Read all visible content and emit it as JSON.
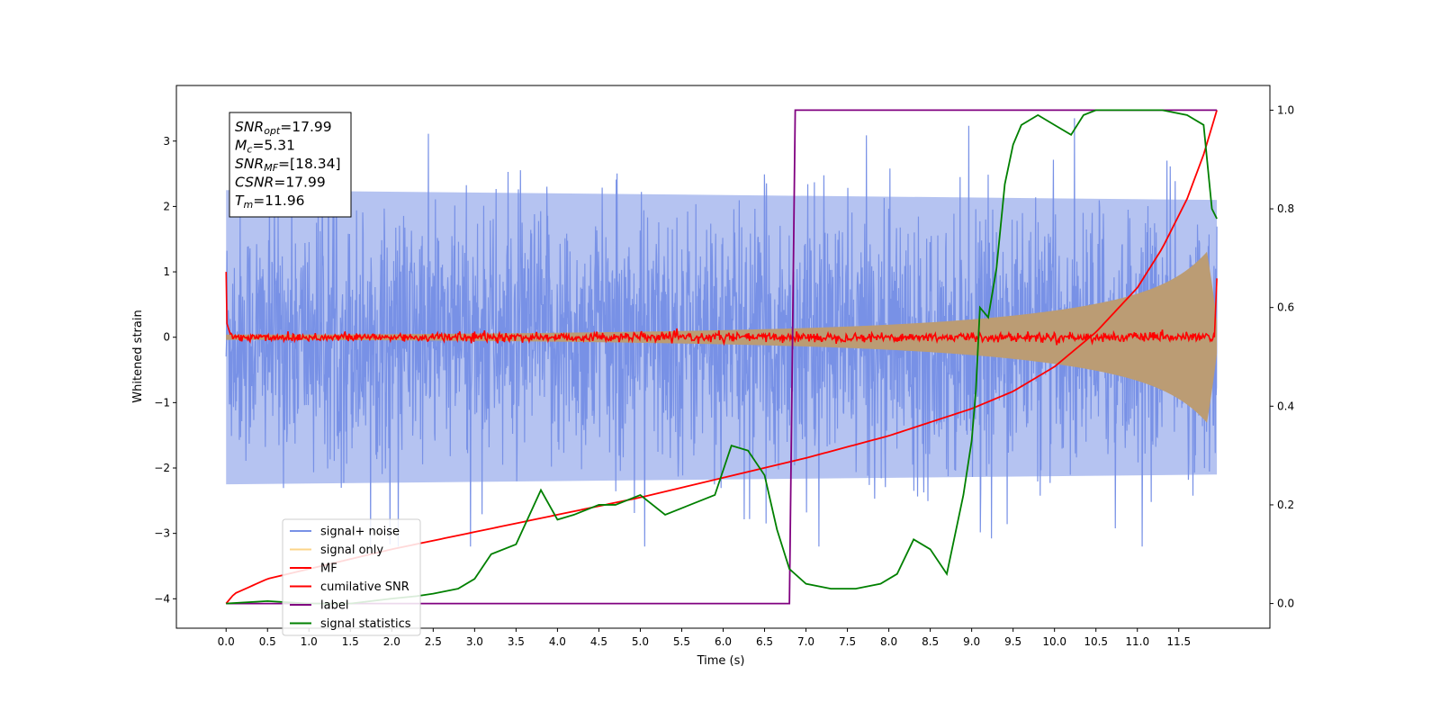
{
  "chart_data": {
    "type": "line",
    "xlabel": "Time (s)",
    "ylabel": "Whitened strain",
    "xlim": [
      -0.6,
      12.6
    ],
    "ylim": [
      -4.45,
      3.85
    ],
    "ylim_right": [
      -0.05,
      1.05
    ],
    "x_ticks": [
      "0.0",
      "0.5",
      "1.0",
      "1.5",
      "2.0",
      "2.5",
      "3.0",
      "3.5",
      "4.0",
      "4.5",
      "5.0",
      "5.5",
      "6.0",
      "6.5",
      "7.0",
      "7.5",
      "8.0",
      "8.5",
      "9.0",
      "9.5",
      "10.0",
      "10.5",
      "11.0",
      "11.5"
    ],
    "y_ticks": [
      "−4",
      "−3",
      "−2",
      "−1",
      "0",
      "1",
      "2",
      "3"
    ],
    "y_ticks_right": [
      "0.0",
      "0.2",
      "0.4",
      "0.6",
      "0.8",
      "1.0"
    ],
    "legend_position": "lower-left",
    "annotation": {
      "lines": [
        {
          "base": "SNR",
          "sub": "opt",
          "value": "=17.99"
        },
        {
          "base": "M",
          "sub": "c",
          "value": "=5.31"
        },
        {
          "base": "SNR",
          "sub": "MF",
          "value": "=[18.34]"
        },
        {
          "base": "CSNR",
          "sub": "",
          "value": "=17.99"
        },
        {
          "base": "T",
          "sub": "m",
          "value": "=11.96"
        }
      ]
    },
    "series": [
      {
        "name": "signal+ noise",
        "color": "#7891e6",
        "axis": "left",
        "kind": "noise",
        "amplitude": 2.35,
        "x_range": [
          0,
          11.96
        ]
      },
      {
        "name": "signal only",
        "color": "#bb9c74",
        "legend_color": "#fcd589",
        "axis": "left",
        "kind": "chirp",
        "start_amplitude": 0.04,
        "end_amplitude": 1.25,
        "x_range": [
          0,
          11.96
        ]
      },
      {
        "name": "MF",
        "color": "#ff0000",
        "axis": "left",
        "kind": "matched-filter",
        "x_range": [
          0,
          11.96
        ]
      },
      {
        "name": "cumilative SNR",
        "color": "#ff0000",
        "axis": "right",
        "kind": "curve",
        "x": [
          0,
          0.1,
          0.5,
          1.0,
          2.0,
          3.0,
          4.0,
          5.0,
          6.0,
          7.0,
          8.0,
          9.0,
          9.5,
          10.0,
          10.5,
          11.0,
          11.3,
          11.6,
          11.8,
          11.96
        ],
        "values": [
          0.0,
          0.02,
          0.05,
          0.07,
          0.11,
          0.145,
          0.18,
          0.215,
          0.255,
          0.295,
          0.34,
          0.395,
          0.43,
          0.48,
          0.55,
          0.64,
          0.72,
          0.82,
          0.91,
          1.0
        ]
      },
      {
        "name": "label",
        "color": "#800080",
        "axis": "right",
        "kind": "step",
        "x": [
          0,
          6.8,
          6.87,
          11.96
        ],
        "values": [
          0,
          0,
          1,
          1
        ]
      },
      {
        "name": "signal statistics",
        "color": "#008000",
        "axis": "right",
        "kind": "curve",
        "x": [
          0,
          0.5,
          1.0,
          1.5,
          2.0,
          2.3,
          2.5,
          2.8,
          3.0,
          3.2,
          3.5,
          3.8,
          4.0,
          4.2,
          4.5,
          4.7,
          5.0,
          5.3,
          5.6,
          5.9,
          6.1,
          6.3,
          6.5,
          6.65,
          6.8,
          7.0,
          7.3,
          7.6,
          7.9,
          8.1,
          8.3,
          8.5,
          8.7,
          8.9,
          9.0,
          9.05,
          9.1,
          9.2,
          9.3,
          9.4,
          9.5,
          9.6,
          9.8,
          10.0,
          10.2,
          10.35,
          10.5,
          10.7,
          11.0,
          11.3,
          11.6,
          11.8,
          11.9,
          11.96
        ],
        "values": [
          0.0,
          0.005,
          0.0,
          0.0,
          0.01,
          0.015,
          0.02,
          0.03,
          0.05,
          0.1,
          0.12,
          0.23,
          0.17,
          0.18,
          0.2,
          0.2,
          0.22,
          0.18,
          0.2,
          0.22,
          0.32,
          0.31,
          0.26,
          0.15,
          0.07,
          0.04,
          0.03,
          0.03,
          0.04,
          0.06,
          0.13,
          0.11,
          0.06,
          0.22,
          0.33,
          0.43,
          0.6,
          0.58,
          0.68,
          0.85,
          0.93,
          0.97,
          0.99,
          0.97,
          0.95,
          0.99,
          1.0,
          1.0,
          1.0,
          1.0,
          0.99,
          0.97,
          0.8,
          0.78
        ]
      }
    ]
  }
}
